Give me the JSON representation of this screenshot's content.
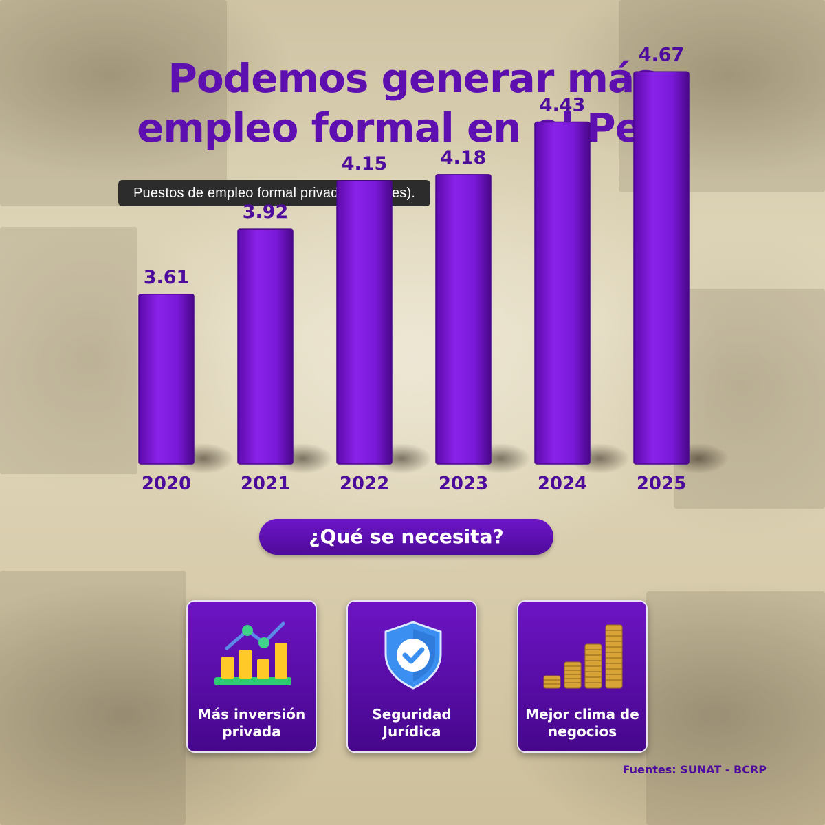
{
  "title_line1": "Podemos generar más",
  "title_line2": "empleo formal en el Perú",
  "subtitle": "Puestos de empleo formal privado (millones).",
  "chart_data": {
    "type": "bar",
    "title": "Podemos generar más empleo formal en el Perú",
    "subtitle": "Puestos de empleo formal privado (millones).",
    "categories": [
      "2020",
      "2021",
      "2022",
      "2023",
      "2024",
      "2025"
    ],
    "values": [
      3.61,
      3.92,
      4.15,
      4.18,
      4.43,
      4.67
    ],
    "value_labels": [
      "3.61",
      "3.92",
      "4.15",
      "4.18",
      "4.43",
      "4.67"
    ],
    "xlabel": "",
    "ylabel": "",
    "grid": false,
    "legend": "none",
    "bar_color": "#7a19d9"
  },
  "question": "¿Qué se necesita?",
  "cards": [
    {
      "icon": "growth-chart-icon",
      "label": "Más inversión privada"
    },
    {
      "icon": "shield-check-icon",
      "label": "Seguridad Jurídica"
    },
    {
      "icon": "coin-stacks-icon",
      "label": "Mejor clima de negocios"
    }
  ],
  "source": "Fuentes: SUNAT - BCRP",
  "colors": {
    "purple": "#5d0fb0",
    "bar": "#7a19d9",
    "subtitle_bg": "#2c2c2c",
    "background": "#ddd3b6"
  }
}
